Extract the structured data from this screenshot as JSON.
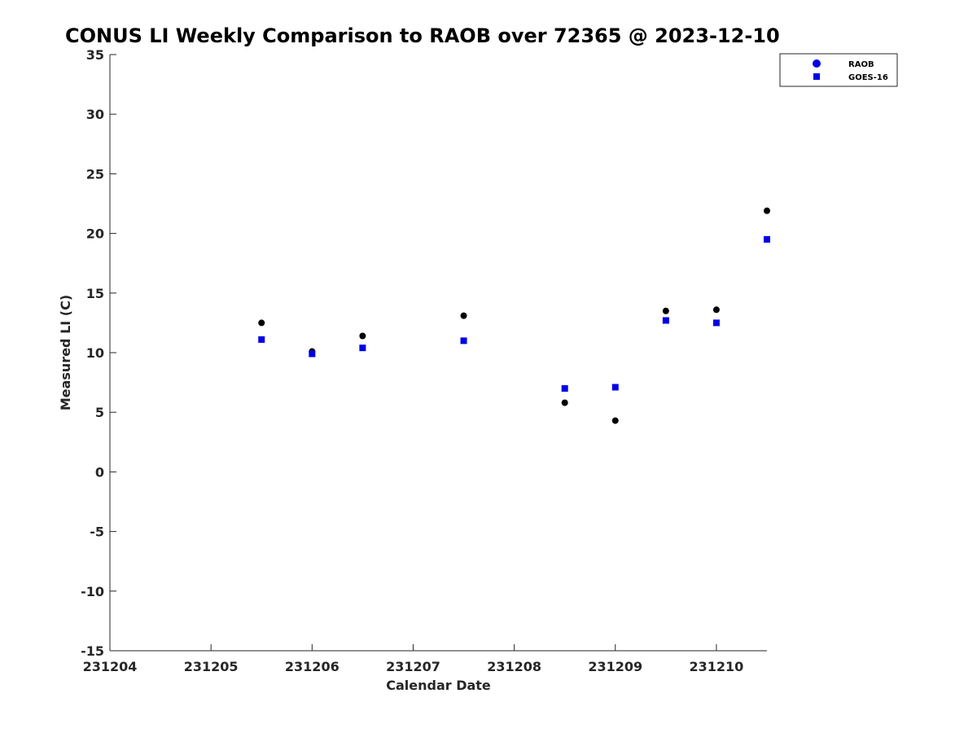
{
  "chart_data": {
    "type": "scatter",
    "title": "CONUS LI Weekly Comparison to RAOB over 72365 @ 2023-12-10",
    "xlabel": "Calendar Date",
    "ylabel": "Measured LI (C)",
    "xlim": [
      231204,
      231210.5
    ],
    "ylim": [
      -15,
      35
    ],
    "x_ticks": [
      231204,
      231205,
      231206,
      231207,
      231208,
      231209,
      231210
    ],
    "x_tick_labels": [
      "231204",
      "231205",
      "231206",
      "231207",
      "231208",
      "231209",
      "231210"
    ],
    "y_ticks": [
      -15,
      -10,
      -5,
      0,
      5,
      10,
      15,
      20,
      25,
      30,
      35
    ],
    "y_tick_labels": [
      "-15",
      "-10",
      "-5",
      "0",
      "5",
      "10",
      "15",
      "20",
      "25",
      "30",
      "35"
    ],
    "grid": false,
    "legend_position": "top-right",
    "series": [
      {
        "name": "RAOB",
        "marker": "circle",
        "color": "#000000",
        "x": [
          231205.5,
          231206,
          231206.5,
          231207.5,
          231208.5,
          231209,
          231209.5,
          231210,
          231210.5
        ],
        "y": [
          12.5,
          10.1,
          11.4,
          13.1,
          5.8,
          4.3,
          13.5,
          13.6,
          21.9
        ]
      },
      {
        "name": "GOES-16",
        "marker": "square",
        "color": "#0000e6",
        "x": [
          231205.5,
          231206,
          231206.5,
          231207.5,
          231208.5,
          231209,
          231209.5,
          231210,
          231210.5
        ],
        "y": [
          11.1,
          9.9,
          10.4,
          11.0,
          7.0,
          7.1,
          12.7,
          12.5,
          19.5
        ]
      }
    ],
    "legend": {
      "entries": [
        "RAOB",
        "GOES-16"
      ]
    }
  }
}
